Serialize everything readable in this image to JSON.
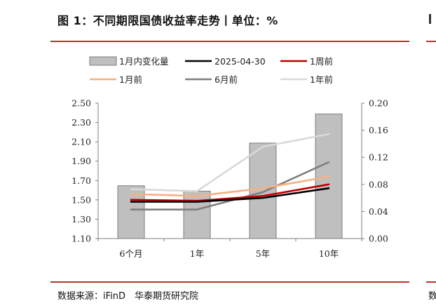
{
  "header": {
    "title": "图 1：不同期限国债收益率走势丨单位：%"
  },
  "footer": {
    "source": "数据来源：iFinD　华泰期货研究院",
    "cut_text": "数"
  },
  "colors": {
    "accent_rule": "#b8322e",
    "bar_fill": "#bfbfbf",
    "bar_stroke": "#7f7f7f"
  },
  "chart_data": {
    "type": "bar+line",
    "categories": [
      "6个月",
      "1年",
      "5年",
      "10年"
    ],
    "left_axis": {
      "ylim": [
        1.1,
        2.5
      ],
      "ticks": [
        "1.10",
        "1.30",
        "1.50",
        "1.70",
        "1.90",
        "2.10",
        "2.30",
        "2.50"
      ]
    },
    "right_axis": {
      "ylim": [
        0.0,
        0.2
      ],
      "ticks": [
        "0.00",
        "0.04",
        "0.08",
        "0.12",
        "0.16",
        "0.20"
      ]
    },
    "bars": {
      "name": "1月内变化量",
      "axis": "right",
      "values": [
        0.078,
        0.07,
        0.141,
        0.184
      ],
      "color": "#bfbfbf"
    },
    "lines": [
      {
        "name": "2025-04-30",
        "axis": "left",
        "values": [
          1.48,
          1.48,
          1.52,
          1.62
        ],
        "color": "#000000"
      },
      {
        "name": "1周前",
        "axis": "left",
        "values": [
          1.5,
          1.49,
          1.54,
          1.66
        ],
        "color": "#c00000"
      },
      {
        "name": "1月前",
        "axis": "left",
        "values": [
          1.56,
          1.54,
          1.62,
          1.74
        ],
        "color": "#f4b183"
      },
      {
        "name": "6月前",
        "axis": "left",
        "values": [
          1.4,
          1.4,
          1.58,
          1.89
        ],
        "color": "#7f7f7f"
      },
      {
        "name": "1年前",
        "axis": "left",
        "values": [
          1.61,
          1.59,
          2.05,
          2.18
        ],
        "color": "#d9d9d9"
      }
    ],
    "legend_position": "top",
    "grid": false
  }
}
